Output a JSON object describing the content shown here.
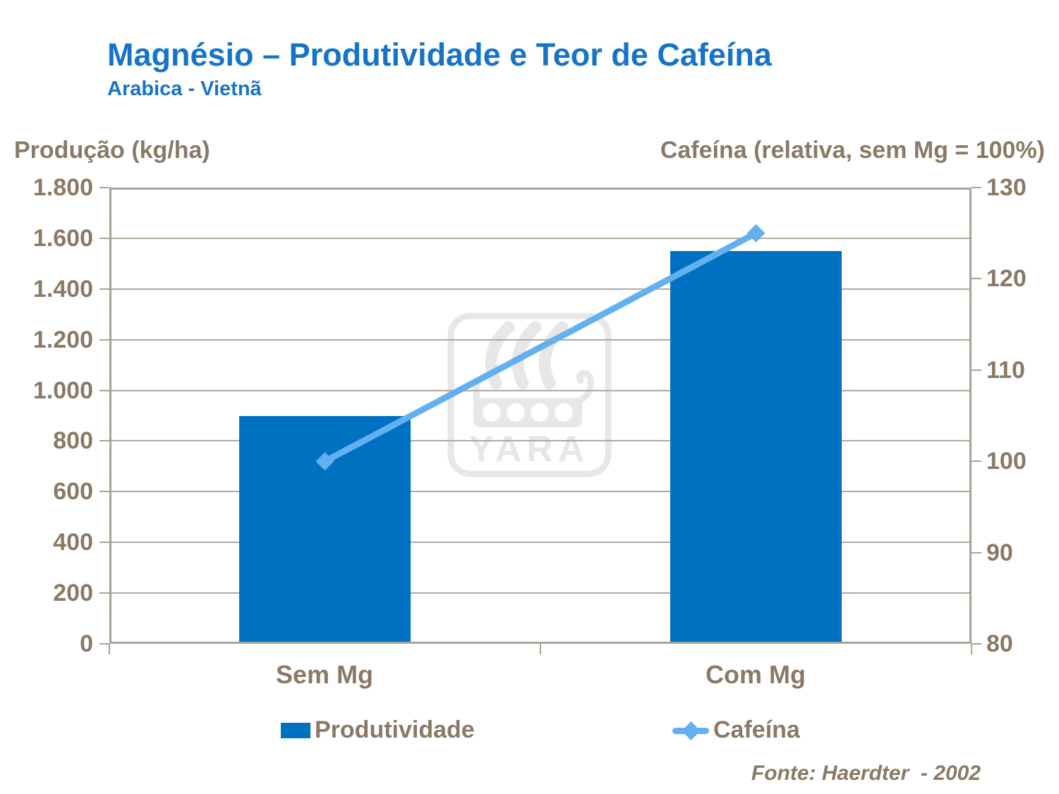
{
  "header": {
    "title": "Magnésio – Produtividade e Teor de Cafeína",
    "subtitle": "Arabica - Vietnã"
  },
  "chart_data": {
    "type": "bar+line combo",
    "categories": [
      "Sem Mg",
      "Com Mg"
    ],
    "series": [
      {
        "name": "Produtividade",
        "type": "bar",
        "axis": "left",
        "values": [
          900,
          1550
        ],
        "color": "#0070C0"
      },
      {
        "name": "Cafeína",
        "type": "line",
        "axis": "right",
        "values": [
          100,
          125
        ],
        "color": "#63B0F1",
        "marker": "diamond"
      }
    ],
    "left_axis": {
      "title": "Produção (kg/ha)",
      "min": 0,
      "max": 1800,
      "step": 200,
      "tick_labels": [
        "1.800",
        "1.600",
        "1.400",
        "1.200",
        "1.000",
        "800",
        "600",
        "400",
        "200",
        "0"
      ]
    },
    "right_axis": {
      "title": "Cafeína (relativa, sem Mg = 100%)",
      "min": 80,
      "max": 130,
      "step": 10,
      "tick_labels": [
        "130",
        "120",
        "110",
        "100",
        "90",
        "80"
      ]
    },
    "grid": true,
    "legend_position": "bottom"
  },
  "watermark": {
    "text": "YARA"
  },
  "footer": {
    "source": "Fonte: Haerdter  - 2002"
  },
  "colors": {
    "title_blue": "#1674C8",
    "axis_brown": "#8A7A65",
    "bar_blue": "#0070C0",
    "line_blue": "#63B0F1",
    "grid_tan": "#B3A99C",
    "border_tan": "#ACA195",
    "watermark_gray": "#E7E7E7"
  }
}
